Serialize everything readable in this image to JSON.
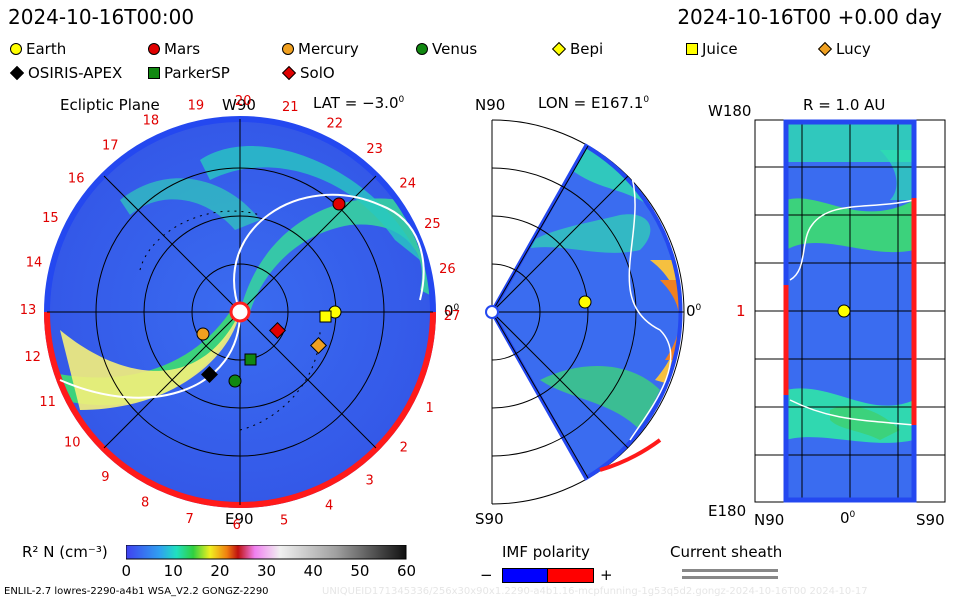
{
  "header": {
    "timestamp_left": "2024-10-16T00:00",
    "timestamp_right": "2024-10-16T00 +0.00 day"
  },
  "legend": {
    "items": [
      {
        "label": "Earth",
        "shape": "circle",
        "color": "#ffff00"
      },
      {
        "label": "Mars",
        "shape": "circle",
        "color": "#e00000"
      },
      {
        "label": "Mercury",
        "shape": "circle",
        "color": "#f0a020"
      },
      {
        "label": "Venus",
        "shape": "circle",
        "color": "#118811"
      },
      {
        "label": "Bepi",
        "shape": "diamond",
        "color": "#ffff00"
      },
      {
        "label": "Juice",
        "shape": "square",
        "color": "#ffff00"
      },
      {
        "label": "Lucy",
        "shape": "diamond",
        "color": "#f0a020"
      },
      {
        "label": "OSIRIS-APEX",
        "shape": "diamond",
        "color": "#000000"
      },
      {
        "label": "ParkerSP",
        "shape": "square",
        "color": "#118811"
      },
      {
        "label": "SolO",
        "shape": "diamond",
        "color": "#e00000"
      }
    ]
  },
  "panels": {
    "ecliptic": {
      "title": "Ecliptic Plane",
      "lat": "LAT = −3.0",
      "top_label": "W90",
      "bottom_label": "E90",
      "right_label": "0",
      "carrington_numbers": [
        "19",
        "20",
        "21",
        "22",
        "23",
        "24",
        "25",
        "26",
        "27",
        "0",
        "1",
        "2",
        "3",
        "4",
        "5",
        "6",
        "7",
        "8",
        "9",
        "10",
        "11",
        "12",
        "13",
        "14",
        "15",
        "16",
        "17",
        "18"
      ]
    },
    "meridional": {
      "lon": "LON = E167.1",
      "top_label": "N90",
      "bottom_label": "S90",
      "right_label": "0"
    },
    "shell": {
      "r": "R = 1.0 AU",
      "top_left": "W180",
      "mid_left": "1",
      "bottom_left": "E180",
      "axis_left": "N90",
      "axis_mid": "0",
      "axis_right": "S90"
    }
  },
  "colorbar": {
    "label": "R² N (cm⁻³)",
    "ticks": [
      "0",
      "10",
      "20",
      "30",
      "40",
      "50",
      "60"
    ]
  },
  "imf": {
    "title": "IMF polarity",
    "minus": "−",
    "plus": "+",
    "minus_color": "#0000ff",
    "plus_color": "#ff0000"
  },
  "sheath": {
    "title": "Current sheath"
  },
  "footer": {
    "left": "ENLIL-2.7 lowres-2290-a4b1 WSA_V2.2 GONGZ-2290",
    "right": "UNIQUEID171345336/256x30x90x1.2290-a4b1.16-mcpfunning-1g53q5d2.gongz-2024-10-16T00  2024-10-17"
  }
}
